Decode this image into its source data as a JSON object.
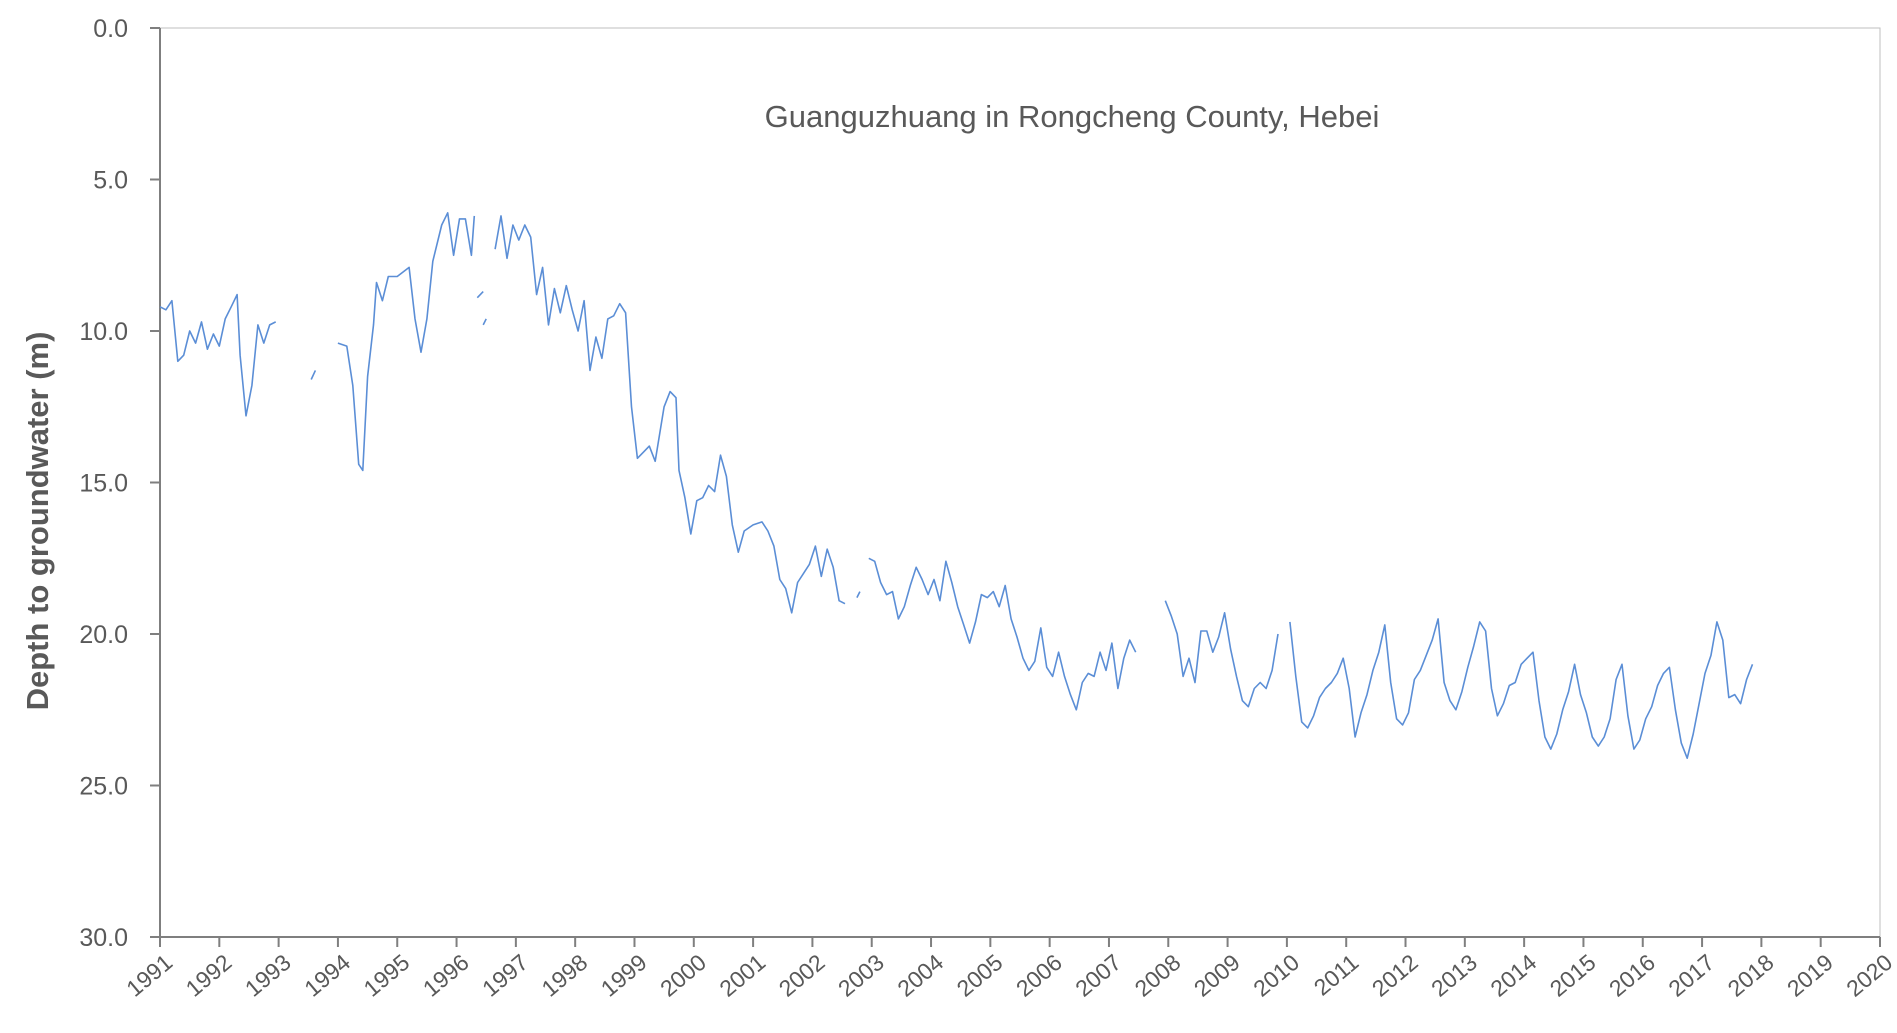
{
  "chart_data": {
    "type": "line",
    "title": "Guanguzhuang in Rongcheng County, Hebei",
    "xlabel": "",
    "ylabel": "Depth to groundwater (m)",
    "xlim": [
      1991,
      2020
    ],
    "ylim": [
      0,
      30
    ],
    "y_inverted": true,
    "grid": false,
    "legend": "none",
    "x_tick_labels": [
      "1991",
      "1992",
      "1993",
      "1994",
      "1995",
      "1996",
      "1997",
      "1998",
      "1999",
      "2000",
      "2001",
      "2002",
      "2003",
      "2004",
      "2005",
      "2006",
      "2007",
      "2008",
      "2009",
      "2010",
      "2011",
      "2012",
      "2013",
      "2014",
      "2015",
      "2016",
      "2017",
      "2018",
      "2019",
      "2020"
    ],
    "y_tick_labels": [
      "0.0",
      "5.0",
      "10.0",
      "15.0",
      "20.0",
      "25.0",
      "30.0"
    ],
    "y_tick_values": [
      0,
      5,
      10,
      15,
      20,
      25,
      30
    ],
    "colors": {
      "line": "#5b8ed6",
      "axis": "#7f7f7f",
      "text": "#595959"
    },
    "series": [
      {
        "segments": [
          [
            [
              1991.0,
              9.2
            ],
            [
              1991.1,
              9.3
            ],
            [
              1991.2,
              9.0
            ],
            [
              1991.3,
              11.0
            ],
            [
              1991.4,
              10.8
            ],
            [
              1991.5,
              10.0
            ],
            [
              1991.6,
              10.4
            ],
            [
              1991.7,
              9.7
            ],
            [
              1991.8,
              10.6
            ],
            [
              1991.9,
              10.1
            ],
            [
              1992.0,
              10.5
            ],
            [
              1992.1,
              9.6
            ],
            [
              1992.2,
              9.2
            ],
            [
              1992.3,
              8.8
            ],
            [
              1992.35,
              10.8
            ],
            [
              1992.45,
              12.8
            ],
            [
              1992.55,
              11.8
            ],
            [
              1992.65,
              9.8
            ],
            [
              1992.75,
              10.4
            ],
            [
              1992.85,
              9.8
            ],
            [
              1992.95,
              9.7
            ]
          ],
          [
            [
              1993.55,
              11.6
            ],
            [
              1993.62,
              11.3
            ]
          ],
          [
            [
              1994.0,
              10.4
            ],
            [
              1994.15,
              10.5
            ],
            [
              1994.25,
              11.8
            ],
            [
              1994.35,
              14.4
            ],
            [
              1994.42,
              14.6
            ],
            [
              1994.5,
              11.5
            ],
            [
              1994.6,
              9.8
            ],
            [
              1994.65,
              8.4
            ],
            [
              1994.75,
              9.0
            ],
            [
              1994.85,
              8.2
            ],
            [
              1995.0,
              8.2
            ],
            [
              1995.2,
              7.9
            ],
            [
              1995.3,
              9.6
            ],
            [
              1995.4,
              10.7
            ],
            [
              1995.5,
              9.6
            ],
            [
              1995.6,
              7.7
            ],
            [
              1995.75,
              6.5
            ],
            [
              1995.85,
              6.1
            ],
            [
              1995.95,
              7.5
            ],
            [
              1996.05,
              6.3
            ],
            [
              1996.15,
              6.3
            ],
            [
              1996.25,
              7.5
            ],
            [
              1996.3,
              6.2
            ]
          ],
          [
            [
              1996.35,
              8.9
            ],
            [
              1996.45,
              8.7
            ]
          ],
          [
            [
              1996.45,
              9.8
            ],
            [
              1996.5,
              9.6
            ]
          ],
          [
            [
              1996.65,
              7.3
            ],
            [
              1996.75,
              6.2
            ],
            [
              1996.85,
              7.6
            ],
            [
              1996.95,
              6.5
            ],
            [
              1997.05,
              7.0
            ],
            [
              1997.15,
              6.5
            ],
            [
              1997.25,
              6.9
            ],
            [
              1997.35,
              8.8
            ],
            [
              1997.45,
              7.9
            ],
            [
              1997.55,
              9.8
            ],
            [
              1997.65,
              8.6
            ],
            [
              1997.75,
              9.4
            ],
            [
              1997.85,
              8.5
            ],
            [
              1997.95,
              9.3
            ],
            [
              1998.05,
              10.0
            ],
            [
              1998.15,
              9.0
            ],
            [
              1998.25,
              11.3
            ],
            [
              1998.35,
              10.2
            ],
            [
              1998.45,
              10.9
            ],
            [
              1998.55,
              9.6
            ],
            [
              1998.65,
              9.5
            ],
            [
              1998.75,
              9.1
            ],
            [
              1998.85,
              9.4
            ],
            [
              1998.95,
              12.5
            ],
            [
              1999.05,
              14.2
            ],
            [
              1999.15,
              14.0
            ],
            [
              1999.25,
              13.8
            ],
            [
              1999.35,
              14.3
            ],
            [
              1999.5,
              12.5
            ],
            [
              1999.6,
              12.0
            ],
            [
              1999.7,
              12.2
            ],
            [
              1999.75,
              14.6
            ],
            [
              1999.85,
              15.5
            ],
            [
              1999.95,
              16.7
            ],
            [
              2000.05,
              15.6
            ],
            [
              2000.15,
              15.5
            ],
            [
              2000.25,
              15.1
            ],
            [
              2000.35,
              15.3
            ],
            [
              2000.45,
              14.1
            ],
            [
              2000.55,
              14.8
            ],
            [
              2000.65,
              16.4
            ],
            [
              2000.75,
              17.3
            ],
            [
              2000.85,
              16.6
            ],
            [
              2001.0,
              16.4
            ],
            [
              2001.15,
              16.3
            ],
            [
              2001.25,
              16.6
            ],
            [
              2001.35,
              17.1
            ],
            [
              2001.45,
              18.2
            ],
            [
              2001.55,
              18.5
            ],
            [
              2001.65,
              19.3
            ],
            [
              2001.75,
              18.3
            ],
            [
              2001.85,
              18.0
            ],
            [
              2001.95,
              17.7
            ],
            [
              2002.05,
              17.1
            ],
            [
              2002.15,
              18.1
            ],
            [
              2002.25,
              17.2
            ],
            [
              2002.35,
              17.8
            ],
            [
              2002.45,
              18.9
            ],
            [
              2002.55,
              19.0
            ]
          ],
          [
            [
              2002.75,
              18.8
            ],
            [
              2002.8,
              18.6
            ]
          ],
          [
            [
              2002.95,
              17.5
            ],
            [
              2003.05,
              17.6
            ],
            [
              2003.15,
              18.3
            ],
            [
              2003.25,
              18.7
            ],
            [
              2003.35,
              18.6
            ],
            [
              2003.45,
              19.5
            ],
            [
              2003.55,
              19.1
            ],
            [
              2003.65,
              18.4
            ],
            [
              2003.75,
              17.8
            ],
            [
              2003.85,
              18.2
            ],
            [
              2003.95,
              18.7
            ],
            [
              2004.05,
              18.2
            ],
            [
              2004.15,
              18.9
            ],
            [
              2004.25,
              17.6
            ],
            [
              2004.35,
              18.3
            ],
            [
              2004.45,
              19.1
            ],
            [
              2004.55,
              19.7
            ],
            [
              2004.65,
              20.3
            ],
            [
              2004.75,
              19.6
            ],
            [
              2004.85,
              18.7
            ],
            [
              2004.95,
              18.8
            ],
            [
              2005.05,
              18.6
            ],
            [
              2005.15,
              19.1
            ],
            [
              2005.25,
              18.4
            ],
            [
              2005.35,
              19.5
            ],
            [
              2005.45,
              20.1
            ],
            [
              2005.55,
              20.8
            ],
            [
              2005.65,
              21.2
            ],
            [
              2005.75,
              20.9
            ],
            [
              2005.85,
              19.8
            ],
            [
              2005.95,
              21.1
            ],
            [
              2006.05,
              21.4
            ],
            [
              2006.15,
              20.6
            ],
            [
              2006.25,
              21.4
            ],
            [
              2006.35,
              22.0
            ],
            [
              2006.45,
              22.5
            ],
            [
              2006.55,
              21.6
            ],
            [
              2006.65,
              21.3
            ],
            [
              2006.75,
              21.4
            ],
            [
              2006.85,
              20.6
            ],
            [
              2006.95,
              21.2
            ],
            [
              2007.05,
              20.3
            ],
            [
              2007.15,
              21.8
            ],
            [
              2007.25,
              20.8
            ],
            [
              2007.35,
              20.2
            ],
            [
              2007.45,
              20.6
            ]
          ],
          [
            [
              2007.95,
              18.9
            ],
            [
              2008.05,
              19.4
            ],
            [
              2008.15,
              20.0
            ],
            [
              2008.25,
              21.4
            ],
            [
              2008.35,
              20.8
            ],
            [
              2008.45,
              21.6
            ],
            [
              2008.55,
              19.9
            ],
            [
              2008.65,
              19.9
            ],
            [
              2008.75,
              20.6
            ],
            [
              2008.85,
              20.1
            ],
            [
              2008.95,
              19.3
            ],
            [
              2009.05,
              20.5
            ],
            [
              2009.15,
              21.4
            ],
            [
              2009.25,
              22.2
            ],
            [
              2009.35,
              22.4
            ],
            [
              2009.45,
              21.8
            ],
            [
              2009.55,
              21.6
            ],
            [
              2009.65,
              21.8
            ],
            [
              2009.75,
              21.2
            ],
            [
              2009.85,
              20.0
            ]
          ],
          [
            [
              2010.05,
              19.6
            ],
            [
              2010.15,
              21.4
            ],
            [
              2010.25,
              22.9
            ],
            [
              2010.35,
              23.1
            ],
            [
              2010.45,
              22.7
            ],
            [
              2010.55,
              22.1
            ],
            [
              2010.65,
              21.8
            ],
            [
              2010.75,
              21.6
            ],
            [
              2010.85,
              21.3
            ],
            [
              2010.95,
              20.8
            ],
            [
              2011.05,
              21.8
            ],
            [
              2011.15,
              23.4
            ],
            [
              2011.25,
              22.6
            ],
            [
              2011.35,
              22.0
            ],
            [
              2011.45,
              21.2
            ],
            [
              2011.55,
              20.6
            ],
            [
              2011.65,
              19.7
            ],
            [
              2011.75,
              21.6
            ],
            [
              2011.85,
              22.8
            ],
            [
              2011.95,
              23.0
            ],
            [
              2012.05,
              22.6
            ],
            [
              2012.15,
              21.5
            ],
            [
              2012.25,
              21.2
            ],
            [
              2012.35,
              20.7
            ],
            [
              2012.45,
              20.2
            ],
            [
              2012.55,
              19.5
            ],
            [
              2012.65,
              21.6
            ],
            [
              2012.75,
              22.2
            ],
            [
              2012.85,
              22.5
            ],
            [
              2012.95,
              21.9
            ],
            [
              2013.05,
              21.1
            ],
            [
              2013.15,
              20.4
            ],
            [
              2013.25,
              19.6
            ],
            [
              2013.35,
              19.9
            ],
            [
              2013.45,
              21.8
            ],
            [
              2013.55,
              22.7
            ],
            [
              2013.65,
              22.3
            ],
            [
              2013.75,
              21.7
            ],
            [
              2013.85,
              21.6
            ],
            [
              2013.95,
              21.0
            ],
            [
              2014.05,
              20.8
            ],
            [
              2014.15,
              20.6
            ],
            [
              2014.25,
              22.2
            ],
            [
              2014.35,
              23.4
            ],
            [
              2014.45,
              23.8
            ],
            [
              2014.55,
              23.3
            ],
            [
              2014.65,
              22.5
            ],
            [
              2014.75,
              21.9
            ],
            [
              2014.85,
              21.0
            ],
            [
              2014.95,
              22.0
            ],
            [
              2015.05,
              22.6
            ],
            [
              2015.15,
              23.4
            ],
            [
              2015.25,
              23.7
            ],
            [
              2015.35,
              23.4
            ],
            [
              2015.45,
              22.8
            ],
            [
              2015.55,
              21.5
            ],
            [
              2015.65,
              21.0
            ],
            [
              2015.75,
              22.7
            ],
            [
              2015.85,
              23.8
            ],
            [
              2015.95,
              23.5
            ],
            [
              2016.05,
              22.8
            ],
            [
              2016.15,
              22.4
            ],
            [
              2016.25,
              21.7
            ],
            [
              2016.35,
              21.3
            ],
            [
              2016.45,
              21.1
            ],
            [
              2016.55,
              22.5
            ],
            [
              2016.65,
              23.6
            ],
            [
              2016.75,
              24.1
            ],
            [
              2016.85,
              23.3
            ],
            [
              2016.95,
              22.3
            ],
            [
              2017.05,
              21.3
            ],
            [
              2017.15,
              20.7
            ],
            [
              2017.25,
              19.6
            ],
            [
              2017.35,
              20.2
            ],
            [
              2017.45,
              22.1
            ],
            [
              2017.55,
              22.0
            ],
            [
              2017.65,
              22.3
            ],
            [
              2017.75,
              21.5
            ],
            [
              2017.85,
              21.0
            ]
          ]
        ]
      }
    ]
  }
}
